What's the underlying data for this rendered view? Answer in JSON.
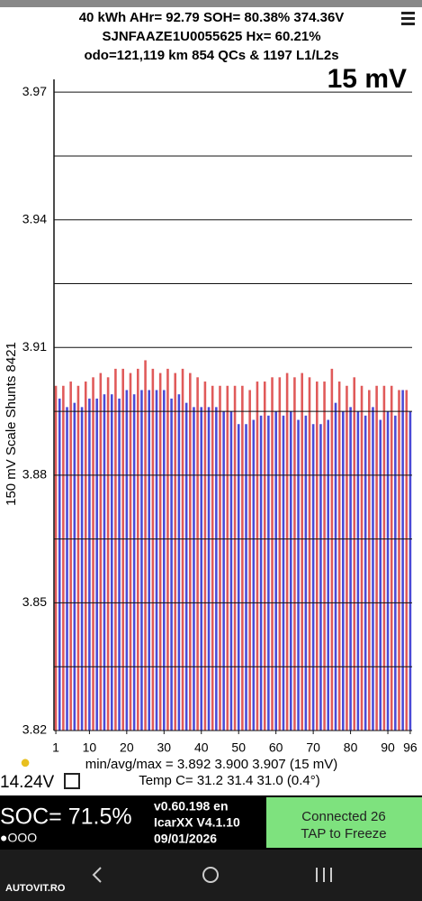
{
  "header": {
    "line1": "40 kWh  AHr= 92.79  SOH= 80.38%   374.36V",
    "line2": "SJNFAAZE1U0055625    Hx= 60.21%",
    "line3": "odo=121,119 km 854 QCs & 1197 L1/L2s"
  },
  "chart_data": {
    "type": "bar",
    "scale_label": "15 mV",
    "y_label": "150 mV Scale Shunts 8421",
    "x": [
      1,
      2,
      3,
      4,
      5,
      6,
      7,
      8,
      9,
      10,
      11,
      12,
      13,
      14,
      15,
      16,
      17,
      18,
      19,
      20,
      21,
      22,
      23,
      24,
      25,
      26,
      27,
      28,
      29,
      30,
      31,
      32,
      33,
      34,
      35,
      36,
      37,
      38,
      39,
      40,
      41,
      42,
      43,
      44,
      45,
      46,
      47,
      48,
      49,
      50,
      51,
      52,
      53,
      54,
      55,
      56,
      57,
      58,
      59,
      60,
      61,
      62,
      63,
      64,
      65,
      66,
      67,
      68,
      69,
      70,
      71,
      72,
      73,
      74,
      75,
      76,
      77,
      78,
      79,
      80,
      81,
      82,
      83,
      84,
      85,
      86,
      87,
      88,
      89,
      90,
      91,
      92,
      93,
      94,
      95,
      96
    ],
    "values": [
      3.901,
      3.898,
      3.901,
      3.896,
      3.902,
      3.897,
      3.901,
      3.896,
      3.902,
      3.898,
      3.903,
      3.898,
      3.904,
      3.899,
      3.903,
      3.899,
      3.905,
      3.898,
      3.905,
      3.9,
      3.904,
      3.899,
      3.905,
      3.9,
      3.907,
      3.9,
      3.905,
      3.9,
      3.904,
      3.9,
      3.905,
      3.898,
      3.904,
      3.899,
      3.905,
      3.897,
      3.904,
      3.896,
      3.903,
      3.896,
      3.902,
      3.896,
      3.901,
      3.896,
      3.901,
      3.895,
      3.901,
      3.895,
      3.901,
      3.892,
      3.901,
      3.892,
      3.9,
      3.893,
      3.902,
      3.894,
      3.902,
      3.894,
      3.903,
      3.895,
      3.903,
      3.894,
      3.904,
      3.895,
      3.903,
      3.893,
      3.904,
      3.894,
      3.903,
      3.892,
      3.902,
      3.892,
      3.902,
      3.893,
      3.905,
      3.897,
      3.902,
      3.895,
      3.901,
      3.896,
      3.903,
      3.895,
      3.901,
      3.894,
      3.9,
      3.896,
      3.901,
      3.893,
      3.901,
      3.895,
      3.901,
      3.894,
      3.9,
      3.9,
      3.9,
      3.895
    ],
    "bar_colors": [
      "#e05a5a",
      "#4a4ad6"
    ],
    "xlim": [
      0.5,
      96.5
    ],
    "xticks": [
      1,
      10,
      20,
      30,
      40,
      50,
      60,
      70,
      80,
      90,
      96
    ],
    "ylim": [
      3.82,
      3.973
    ],
    "yticks": [
      {
        "value": 3.82,
        "label": "3.82"
      },
      {
        "value": 3.85,
        "label": "3.85"
      },
      {
        "value": 3.88,
        "label": "3.88"
      },
      {
        "value": 3.91,
        "label": "3.91"
      },
      {
        "value": 3.94,
        "label": "3.94"
      },
      {
        "value": 3.97,
        "label": "3.97"
      }
    ],
    "minor_yticks": [
      3.835,
      3.865,
      3.895,
      3.925,
      3.955
    ],
    "grid": true,
    "stats": "min/avg/max = 3.892 3.900 3.907  (15 mV)",
    "temp": "Temp C= 31.2  31.4  31.0  (0.4°)"
  },
  "status": {
    "voltage": "14.24V",
    "soc": "SOC= 71.5%",
    "dots": "●OOO",
    "version": "v0.60.198 en",
    "adapter": "IcarXX V4.1.10",
    "date": "09/01/2026",
    "connected": "Connected 26",
    "tap": "TAP to Freeze"
  },
  "watermark": "AUTOVIT.RO"
}
